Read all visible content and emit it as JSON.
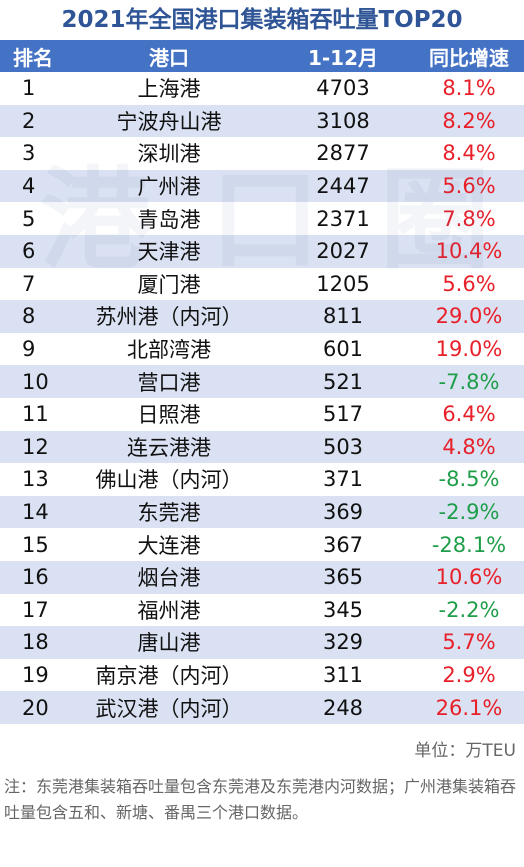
{
  "title": "2021年全国港口集装箱吞吐量TOP20",
  "headers": [
    "排名",
    "港口",
    "1-12月",
    "同比增速"
  ],
  "rows": [
    {
      "rank": "1",
      "port": "上海港",
      "value": "4703",
      "growth": "8.1%"
    },
    {
      "rank": "2",
      "port": "宁波舟山港",
      "value": "3108",
      "growth": "8.2%"
    },
    {
      "rank": "3",
      "port": "深圳港",
      "value": "2877",
      "growth": "8.4%"
    },
    {
      "rank": "4",
      "port": "广州港",
      "value": "2447",
      "growth": "5.6%"
    },
    {
      "rank": "5",
      "port": "青岛港",
      "value": "2371",
      "growth": "7.8%"
    },
    {
      "rank": "6",
      "port": "天津港",
      "value": "2027",
      "growth": "10.4%"
    },
    {
      "rank": "7",
      "port": "厦门港",
      "value": "1205",
      "growth": "5.6%"
    },
    {
      "rank": "8",
      "port": "苏州港（内河）",
      "value": "811",
      "growth": "29.0%"
    },
    {
      "rank": "9",
      "port": "北部湾港",
      "value": "601",
      "growth": "19.0%"
    },
    {
      "rank": "10",
      "port": "营口港",
      "value": "521",
      "growth": "-7.8%"
    },
    {
      "rank": "11",
      "port": "日照港",
      "value": "517",
      "growth": "6.4%"
    },
    {
      "rank": "12",
      "port": "连云港港",
      "value": "503",
      "growth": "4.8%"
    },
    {
      "rank": "13",
      "port": "佛山港（内河）",
      "value": "371",
      "growth": "-8.5%"
    },
    {
      "rank": "14",
      "port": "东莞港",
      "value": "369",
      "growth": "-2.9%"
    },
    {
      "rank": "15",
      "port": "大连港",
      "value": "367",
      "growth": "-28.1%"
    },
    {
      "rank": "16",
      "port": "烟台港",
      "value": "365",
      "growth": "10.6%"
    },
    {
      "rank": "17",
      "port": "福州港",
      "value": "345",
      "growth": "-2.2%"
    },
    {
      "rank": "18",
      "port": "唐山港",
      "value": "329",
      "growth": "5.7%"
    },
    {
      "rank": "19",
      "port": "南京港（内河）",
      "value": "311",
      "growth": "2.9%"
    },
    {
      "rank": "20",
      "port": "武汉港（内河）",
      "value": "248",
      "growth": "26.1%"
    }
  ],
  "unit": "单位：万TEU",
  "note": "注：东莞港集装箱吞吐量包含东莞港及东莞港内河数据；广州港集装箱吞吐量包含五和、新塘、番禺三个港口数据。",
  "watermark": [
    "港",
    "口",
    "圈"
  ],
  "colors": {
    "header_bg": "#4472c4",
    "stripe_bg": "#d9e1f2",
    "positive": "#e8202a",
    "negative": "#1f9e4a",
    "title": "#2f5597"
  }
}
